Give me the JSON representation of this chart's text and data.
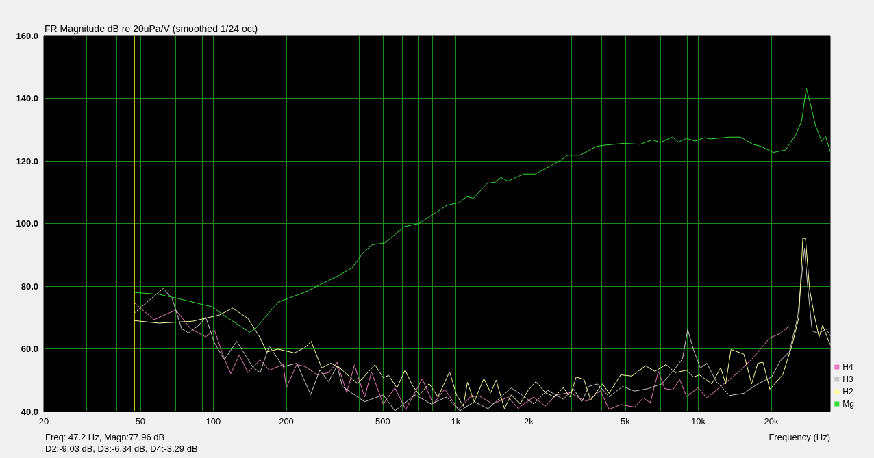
{
  "chart_data": {
    "type": "line",
    "title": "FR Magnitude dB re 20uPa/V (smoothed 1/24 oct)",
    "xlabel": "Frequency (Hz)",
    "annotations": [
      "Freq: 47.2 Hz, Magn:77.96 dB",
      "D2:-9.03 dB, D3:-6.34 dB, D4:-3.29 dB"
    ],
    "log": "x",
    "grid": true,
    "legend": "bottom right",
    "marker": "none",
    "line_style": "solid",
    "xlim": [
      20,
      35000
    ],
    "xticks": [
      20,
      {
        "value": 30,
        "label": null
      },
      {
        "value": 40,
        "label": null
      },
      50,
      {
        "value": 60,
        "label": null
      },
      {
        "value": 70,
        "label": null
      },
      {
        "value": 80,
        "label": null
      },
      {
        "value": 90,
        "label": null
      },
      100,
      200,
      {
        "value": 300,
        "label": null
      },
      {
        "value": 400,
        "label": null
      },
      500,
      {
        "value": 600,
        "label": null
      },
      {
        "value": 700,
        "label": null
      },
      {
        "value": 800,
        "label": null
      },
      {
        "value": 900,
        "label": null
      },
      {
        "value": 1000,
        "label": "1k"
      },
      {
        "value": 2000,
        "label": "2k"
      },
      {
        "value": 3000,
        "label": null
      },
      {
        "value": 4000,
        "label": null
      },
      {
        "value": 5000,
        "label": "5k"
      },
      {
        "value": 6000,
        "label": null
      },
      {
        "value": 7000,
        "label": null
      },
      {
        "value": 8000,
        "label": null
      },
      {
        "value": 9000,
        "label": null
      },
      {
        "value": 10000,
        "label": "10k"
      },
      {
        "value": 20000,
        "label": "20k"
      },
      {
        "value": 30000,
        "label": null
      }
    ],
    "ylim": [
      40,
      160
    ],
    "yticks": [
      {
        "value": 40,
        "label": "40.0"
      },
      {
        "value": 60,
        "label": "60.0"
      },
      {
        "value": 80,
        "label": "80.0"
      },
      {
        "value": 100,
        "label": "100.0"
      },
      {
        "value": 120,
        "label": "120.0"
      },
      {
        "value": 140,
        "label": "140.0"
      },
      {
        "value": 160,
        "label": "160.0"
      }
    ],
    "ref_lines": [
      {
        "axis": "x",
        "value": 47.2,
        "color": "#c8c800"
      }
    ],
    "series": [
      {
        "name": "H4",
        "color": "#e878c0",
        "x": [
          47.4,
          57,
          70,
          80.7,
          93,
          101,
          111,
          118,
          128,
          139,
          156,
          170,
          194,
          200,
          221,
          240,
          268,
          299,
          324,
          355,
          382,
          421,
          449,
          502,
          561,
          622,
          727,
          807,
          901,
          1026,
          1146,
          1247,
          1420,
          1650,
          1805,
          2095,
          2342,
          2597,
          2960,
          3310,
          3470,
          3950,
          4290,
          4790,
          5460,
          5930,
          6340,
          6850,
          7270,
          7850,
          8390,
          8950,
          9980,
          10860,
          12380,
          14590,
          17050,
          19740,
          21780,
          23590
        ],
        "values": [
          74.6,
          69.3,
          72.4,
          66.4,
          63.8,
          66.0,
          56.8,
          52.1,
          58,
          52.4,
          56.5,
          53.2,
          55,
          47.6,
          55,
          54.3,
          51.7,
          52.4,
          55.7,
          46,
          54.8,
          44.6,
          52.6,
          42.4,
          47.5,
          40.6,
          50.4,
          42.4,
          47.1,
          40.6,
          44.6,
          45,
          42.4,
          44.6,
          41,
          44.6,
          41.7,
          45.3,
          46,
          43.9,
          43.3,
          46.6,
          40.7,
          42.2,
          41.4,
          44.3,
          42.8,
          52.8,
          47.3,
          46.9,
          50.2,
          44.7,
          47.6,
          44.3,
          48,
          52.4,
          57.6,
          63.5,
          64.9,
          67.1
        ]
      },
      {
        "name": "H3",
        "color": "#c8c8c8",
        "x": [
          47.4,
          52.5,
          62.2,
          67.7,
          74,
          79,
          87,
          93,
          101,
          111,
          125,
          145,
          156,
          170,
          194,
          221,
          252,
          275,
          299,
          324,
          341,
          421,
          502,
          561,
          680,
          791,
          917,
          1040,
          1192,
          1359,
          1693,
          1929,
          2095,
          2388,
          2776,
          3060,
          3310,
          3540,
          3840,
          4290,
          4880,
          5460,
          6220,
          7080,
          8060,
          8610,
          9050,
          9550,
          10200,
          10860,
          11870,
          13510,
          15420,
          17600,
          20070,
          21780,
          23750,
          25700,
          27420,
          28300,
          29500,
          31500,
          33700,
          35000
        ],
        "values": [
          71.5,
          74.5,
          79.3,
          76,
          66.4,
          65.1,
          67.5,
          70.1,
          62,
          56.5,
          62.4,
          54.3,
          52.4,
          60.9,
          54.3,
          55.4,
          45.4,
          53.2,
          49.5,
          54.6,
          47.9,
          43.1,
          45.3,
          40.2,
          45.3,
          42.4,
          44.6,
          40.2,
          43.1,
          40.9,
          47.5,
          44.6,
          42.4,
          46.8,
          43.9,
          47.2,
          43.1,
          48,
          48.8,
          44.7,
          48,
          46.5,
          47.3,
          48.8,
          53.9,
          56.8,
          66.2,
          59.8,
          53.9,
          55.4,
          49.5,
          45.1,
          45.8,
          48.8,
          51,
          56.1,
          59,
          70.1,
          92.1,
          79.6,
          65.7,
          64.9,
          66.4,
          64.2
        ]
      },
      {
        "name": "H2",
        "color": "#ffffa0",
        "x": [
          47.4,
          59.6,
          82,
          106,
          120,
          139,
          156,
          166,
          185,
          216,
          240,
          253,
          280,
          305,
          333,
          355,
          394,
          464,
          502,
          529,
          572,
          618,
          664,
          708,
          776,
          845,
          943,
          1007,
          1075,
          1117,
          1192,
          1306,
          1393,
          1467,
          1587,
          1693,
          1842,
          1991,
          2139,
          2342,
          2552,
          2776,
          2960,
          3138,
          3380,
          3600,
          4030,
          4290,
          4790,
          5320,
          6060,
          6630,
          7360,
          8060,
          8950,
          9550,
          10120,
          11370,
          12380,
          12970,
          13650,
          15420,
          16600,
          17600,
          18500,
          19740,
          22300,
          24400,
          26000,
          27000,
          27700,
          28800,
          30100,
          31500,
          32600,
          35000
        ],
        "values": [
          69.0,
          68.2,
          68.8,
          70.8,
          73.0,
          69.7,
          63.5,
          59.0,
          59.9,
          58.7,
          60.5,
          62.4,
          53.9,
          55.4,
          53.9,
          51.9,
          48.9,
          54.9,
          50.8,
          51.5,
          47.5,
          53.2,
          48.2,
          45.3,
          48.9,
          44.6,
          52.7,
          45.3,
          41.7,
          49.3,
          43.1,
          50.5,
          46,
          50,
          40.9,
          45.3,
          42.4,
          46.8,
          49.5,
          46,
          44.6,
          47.6,
          44.6,
          51,
          50.2,
          43.6,
          48.8,
          45.8,
          51.7,
          51.3,
          54.6,
          52.8,
          55,
          52.4,
          53.2,
          51,
          51.7,
          48.8,
          54,
          48.8,
          59.8,
          58.3,
          48.8,
          55.4,
          55.7,
          47.1,
          51.7,
          61.3,
          70.1,
          95.4,
          95.1,
          78.9,
          70.8,
          63.8,
          67.5,
          61.3
        ]
      },
      {
        "name": "Mg",
        "color": "#33dd33",
        "x": [
          47.4,
          59.6,
          72,
          99,
          112,
          141,
          149,
          185,
          240,
          299,
          327,
          374,
          418,
          452,
          509,
          614,
          704,
          919,
          1033,
          1110,
          1184,
          1348,
          1458,
          1537,
          1640,
          1904,
          2125,
          2484,
          2692,
          2893,
          3246,
          3791,
          4075,
          4951,
          5757,
          6466,
          6994,
          7820,
          8285,
          8956,
          9690,
          10600,
          11250,
          13400,
          14950,
          16800,
          18100,
          20400,
          22900,
          25200,
          26700,
          27900,
          29100,
          30400,
          32300,
          33500,
          35000
        ],
        "values": [
          78.0,
          77.4,
          76,
          73.4,
          70.4,
          65.3,
          66.4,
          74.9,
          78.2,
          81.8,
          83.3,
          85.9,
          91.0,
          93.2,
          93.8,
          99.0,
          100,
          105.8,
          106.7,
          108.6,
          108.1,
          112.8,
          113.2,
          114.7,
          113.5,
          115.8,
          115.8,
          118.6,
          120.1,
          121.8,
          121.8,
          124.6,
          125,
          125.6,
          125.3,
          126.7,
          125.9,
          127.6,
          126.0,
          127.2,
          126.3,
          127.4,
          127,
          127.6,
          127.6,
          125.3,
          124.7,
          122.7,
          123.5,
          128.2,
          132.7,
          143.2,
          137.8,
          131.4,
          126.3,
          127.8,
          123.1
        ]
      }
    ]
  }
}
